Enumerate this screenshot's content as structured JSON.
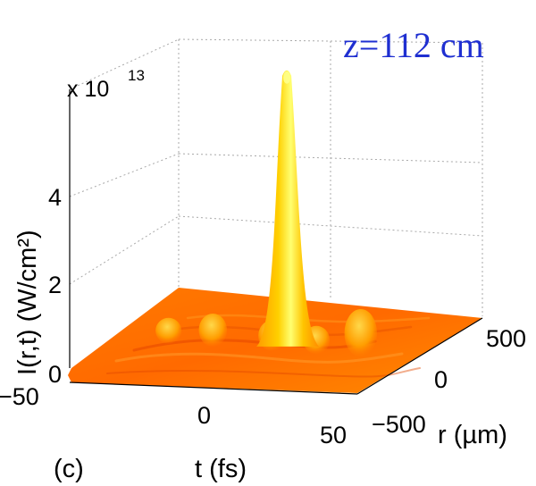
{
  "chart_data": {
    "type": "surface",
    "title": "",
    "annotation": "z=112 cm",
    "annotation_color": "#1f2fd1",
    "panel_label": "(c)",
    "multiplier_base": "x 10",
    "multiplier_exp": "13",
    "x_axis": {
      "label": "t (fs)",
      "ticks": [
        "−50",
        "0",
        "50"
      ],
      "range": [
        -50,
        50
      ]
    },
    "y_axis": {
      "label": "r (µm)",
      "ticks": [
        "−500",
        "0",
        "500"
      ],
      "range": [
        -500,
        500
      ]
    },
    "z_axis": {
      "label": "I(r,t)  (W/cm²)",
      "ticks": [
        "0",
        "2",
        "4"
      ],
      "range": [
        0,
        5.6
      ]
    },
    "colormap": [
      "#ff5a00",
      "#ff8c00",
      "#ffc000",
      "#ffe000",
      "#ffff66"
    ],
    "grid": true,
    "peaks": [
      {
        "t": 5,
        "r": 0,
        "intensity": 5.55
      },
      {
        "t": 30,
        "r": 0,
        "intensity": 0.75
      },
      {
        "t": -20,
        "r": 0,
        "intensity": 0.45
      },
      {
        "t": 0,
        "r": 0,
        "intensity": 0.4
      },
      {
        "t": 15,
        "r": 0,
        "intensity": 0.35
      },
      {
        "t": -35,
        "r": 0,
        "intensity": 0.3
      }
    ]
  }
}
